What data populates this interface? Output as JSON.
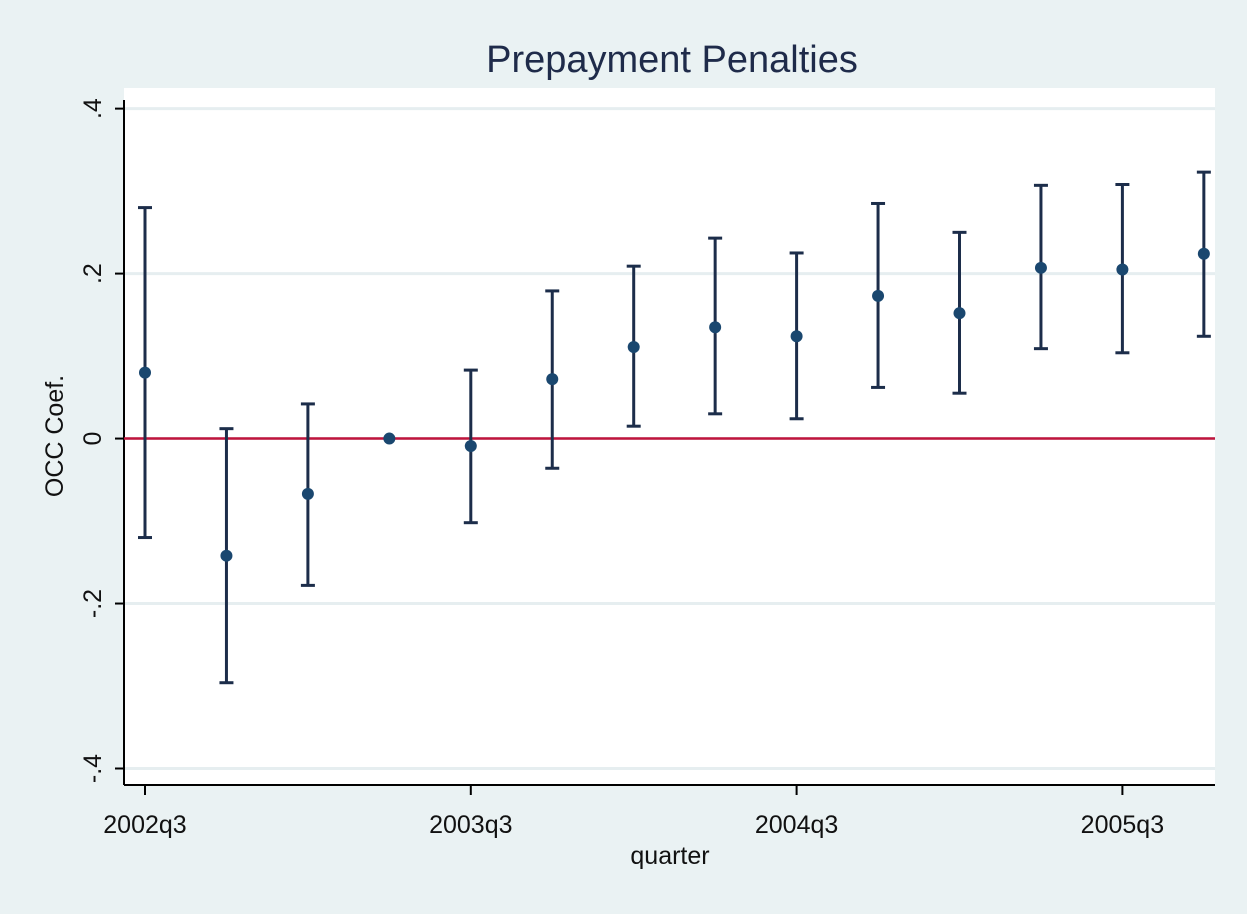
{
  "chart_data": {
    "type": "scatter",
    "title": "Prepayment Penalties",
    "xlabel": "quarter",
    "ylabel": "OCC Coef.",
    "x_tick_labels": [
      "2002q3",
      "2003q3",
      "2004q3",
      "2005q3"
    ],
    "y_tick_labels": [
      ".4",
      ".2",
      "0",
      "-.2",
      "-.4"
    ],
    "y_ticks": [
      0.4,
      0.2,
      0,
      -0.2,
      -0.4
    ],
    "ylim": [
      -0.42,
      0.425
    ],
    "xlim": [
      "2002q3",
      "2005q4"
    ],
    "grid": true,
    "reference_line": {
      "y": 0,
      "color": "#c0143c"
    },
    "marker_color": "#1a476f",
    "errorbar_color": "#1c2d4a",
    "points": [
      {
        "x": "2002q3",
        "y": 0.08,
        "lo": -0.12,
        "hi": 0.28
      },
      {
        "x": "2002q4",
        "y": -0.142,
        "lo": -0.296,
        "hi": 0.012
      },
      {
        "x": "2003q1",
        "y": -0.067,
        "lo": -0.178,
        "hi": 0.042
      },
      {
        "x": "2003q2",
        "y": 0.0,
        "lo": 0.0,
        "hi": 0.0
      },
      {
        "x": "2003q3",
        "y": -0.009,
        "lo": -0.102,
        "hi": 0.083
      },
      {
        "x": "2003q4",
        "y": 0.072,
        "lo": -0.036,
        "hi": 0.179
      },
      {
        "x": "2004q1",
        "y": 0.111,
        "lo": 0.015,
        "hi": 0.209
      },
      {
        "x": "2004q2",
        "y": 0.135,
        "lo": 0.03,
        "hi": 0.243
      },
      {
        "x": "2004q3",
        "y": 0.124,
        "lo": 0.024,
        "hi": 0.225
      },
      {
        "x": "2004q4",
        "y": 0.173,
        "lo": 0.062,
        "hi": 0.285
      },
      {
        "x": "2005q1",
        "y": 0.152,
        "lo": 0.055,
        "hi": 0.25
      },
      {
        "x": "2005q2",
        "y": 0.207,
        "lo": 0.109,
        "hi": 0.307
      },
      {
        "x": "2005q3",
        "y": 0.205,
        "lo": 0.104,
        "hi": 0.308
      },
      {
        "x": "2005q4",
        "y": 0.224,
        "lo": 0.124,
        "hi": 0.323
      }
    ]
  }
}
